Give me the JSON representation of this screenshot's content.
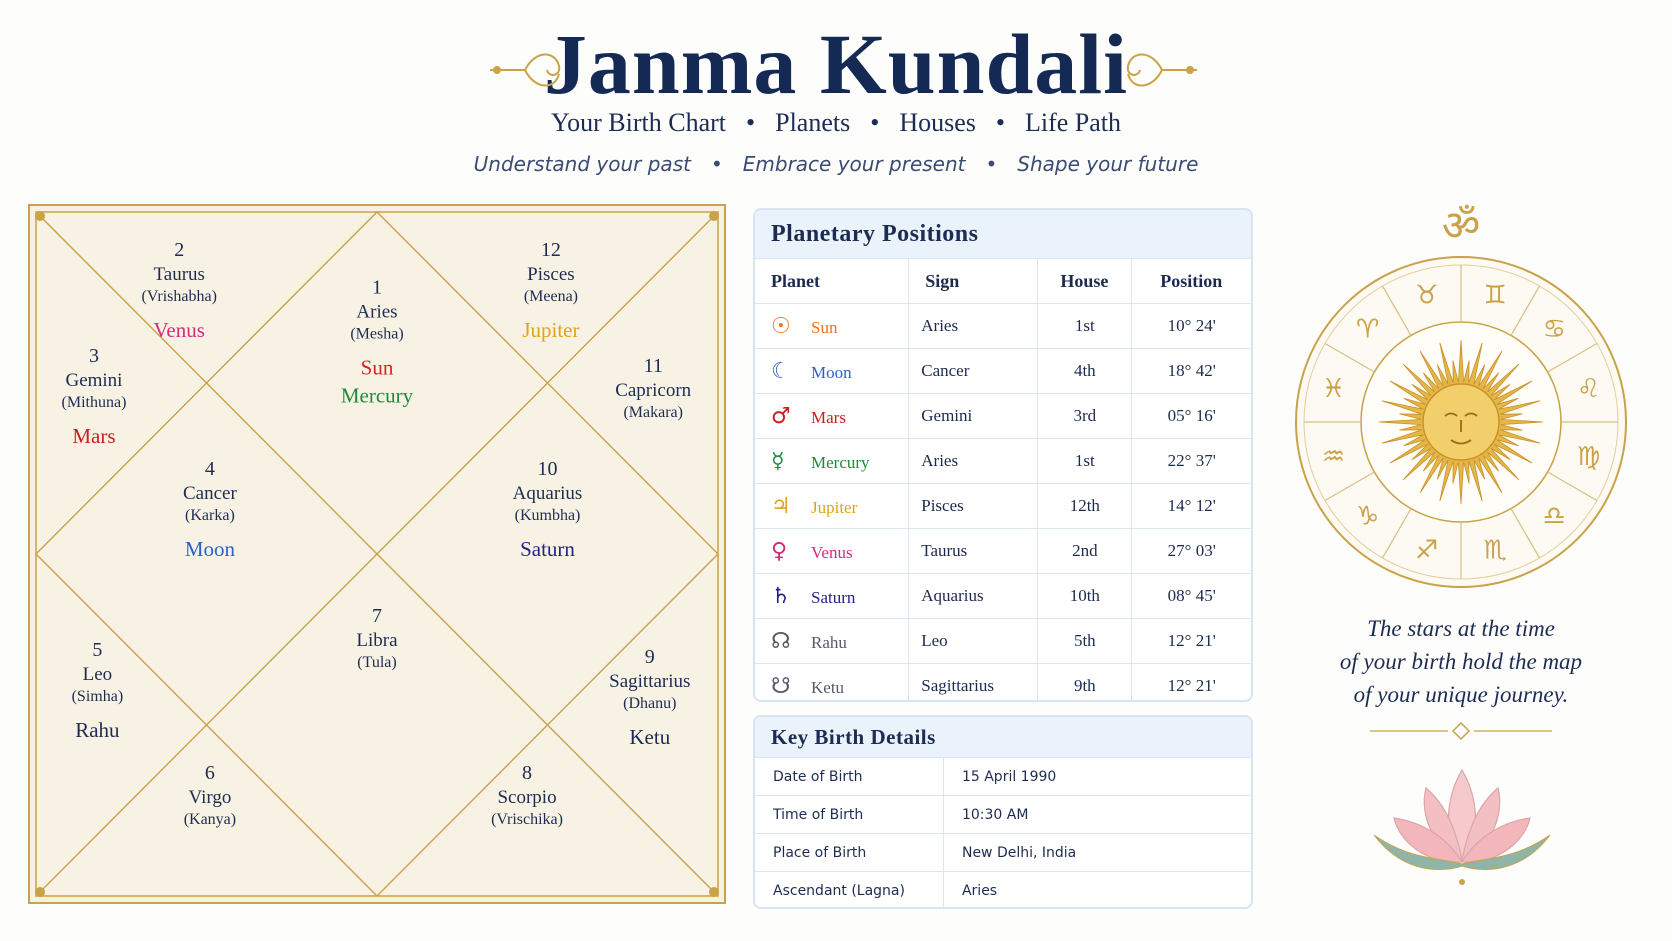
{
  "header": {
    "title": "Janma Kundali",
    "nav": [
      "Your Birth Chart",
      "Planets",
      "Houses",
      "Life Path"
    ],
    "taglines": [
      "Understand your past",
      "Embrace your present",
      "Shape your future"
    ]
  },
  "kundali": {
    "houses": [
      {
        "number": 1,
        "sign": "Aries",
        "alt": "(Mesha)",
        "planets": [
          {
            "name": "Sun",
            "color": "#d0281f"
          },
          {
            "name": "Mercury",
            "color": "#1e8a3c"
          }
        ]
      },
      {
        "number": 2,
        "sign": "Taurus",
        "alt": "(Vrishabha)",
        "planets": [
          {
            "name": "Venus",
            "color": "#d62b7c"
          }
        ]
      },
      {
        "number": 3,
        "sign": "Gemini",
        "alt": "(Mithuna)",
        "planets": [
          {
            "name": "Mars",
            "color": "#c8201e"
          }
        ]
      },
      {
        "number": 4,
        "sign": "Cancer",
        "alt": "(Karka)",
        "planets": [
          {
            "name": "Moon",
            "color": "#2a62c9"
          }
        ]
      },
      {
        "number": 5,
        "sign": "Leo",
        "alt": "(Simha)",
        "planets": [
          {
            "name": "Rahu",
            "color": "#1d2c52"
          }
        ]
      },
      {
        "number": 6,
        "sign": "Virgo",
        "alt": "(Kanya)",
        "planets": []
      },
      {
        "number": 7,
        "sign": "Libra",
        "alt": "(Tula)",
        "planets": []
      },
      {
        "number": 8,
        "sign": "Scorpio",
        "alt": "(Vrischika)",
        "planets": []
      },
      {
        "number": 9,
        "sign": "Sagittarius",
        "alt": "(Dhanu)",
        "planets": [
          {
            "name": "Ketu",
            "color": "#1d2c52"
          }
        ]
      },
      {
        "number": 10,
        "sign": "Aquarius",
        "alt": "(Kumbha)",
        "planets": [
          {
            "name": "Saturn",
            "color": "#22228a"
          }
        ]
      },
      {
        "number": 11,
        "sign": "Capricorn",
        "alt": "(Makara)",
        "planets": []
      },
      {
        "number": 12,
        "sign": "Pisces",
        "alt": "(Meena)",
        "planets": [
          {
            "name": "Jupiter",
            "color": "#e0a418"
          }
        ]
      }
    ]
  },
  "planetary_positions": {
    "title": "Planetary Positions",
    "columns": [
      "Planet",
      "Sign",
      "House",
      "Position"
    ],
    "rows": [
      {
        "symbol": "☉",
        "color": "#e8731a",
        "planet": "Sun",
        "sign": "Aries",
        "house": "1st",
        "position": "10° 24'"
      },
      {
        "symbol": "☾",
        "color": "#2a62c9",
        "planet": "Moon",
        "sign": "Cancer",
        "house": "4th",
        "position": "18° 42'"
      },
      {
        "symbol": "♂",
        "color": "#c8201e",
        "planet": "Mars",
        "sign": "Gemini",
        "house": "3rd",
        "position": "05° 16'"
      },
      {
        "symbol": "☿",
        "color": "#1e8a3c",
        "planet": "Mercury",
        "sign": "Aries",
        "house": "1st",
        "position": "22° 37'"
      },
      {
        "symbol": "♃",
        "color": "#e0a418",
        "planet": "Jupiter",
        "sign": "Pisces",
        "house": "12th",
        "position": "14° 12'"
      },
      {
        "symbol": "♀",
        "color": "#d62b7c",
        "planet": "Venus",
        "sign": "Taurus",
        "house": "2nd",
        "position": "27° 03'"
      },
      {
        "symbol": "♄",
        "color": "#22228a",
        "planet": "Saturn",
        "sign": "Aquarius",
        "house": "10th",
        "position": "08° 45'"
      },
      {
        "symbol": "☊",
        "color": "#555b66",
        "planet": "Rahu",
        "sign": "Leo",
        "house": "5th",
        "position": "12° 21'"
      },
      {
        "symbol": "☋",
        "color": "#555b66",
        "planet": "Ketu",
        "sign": "Sagittarius",
        "house": "9th",
        "position": "12° 21'"
      }
    ]
  },
  "birth_details": {
    "title": "Key Birth Details",
    "rows": [
      [
        "Date of Birth",
        "15 April 1990"
      ],
      [
        "Time of Birth",
        "10:30 AM"
      ],
      [
        "Place of Birth",
        "New Delhi, India"
      ],
      [
        "Ascendant (Lagna)",
        "Aries"
      ]
    ]
  },
  "side": {
    "om": "ॐ",
    "zodiac": [
      "♉",
      "♊",
      "♋",
      "♌",
      "♍",
      "♎",
      "♏",
      "♐",
      "♑",
      "♒",
      "♓",
      "♈"
    ],
    "quote": [
      "The stars at the time",
      "of your birth hold the map",
      "of your unique journey."
    ]
  }
}
